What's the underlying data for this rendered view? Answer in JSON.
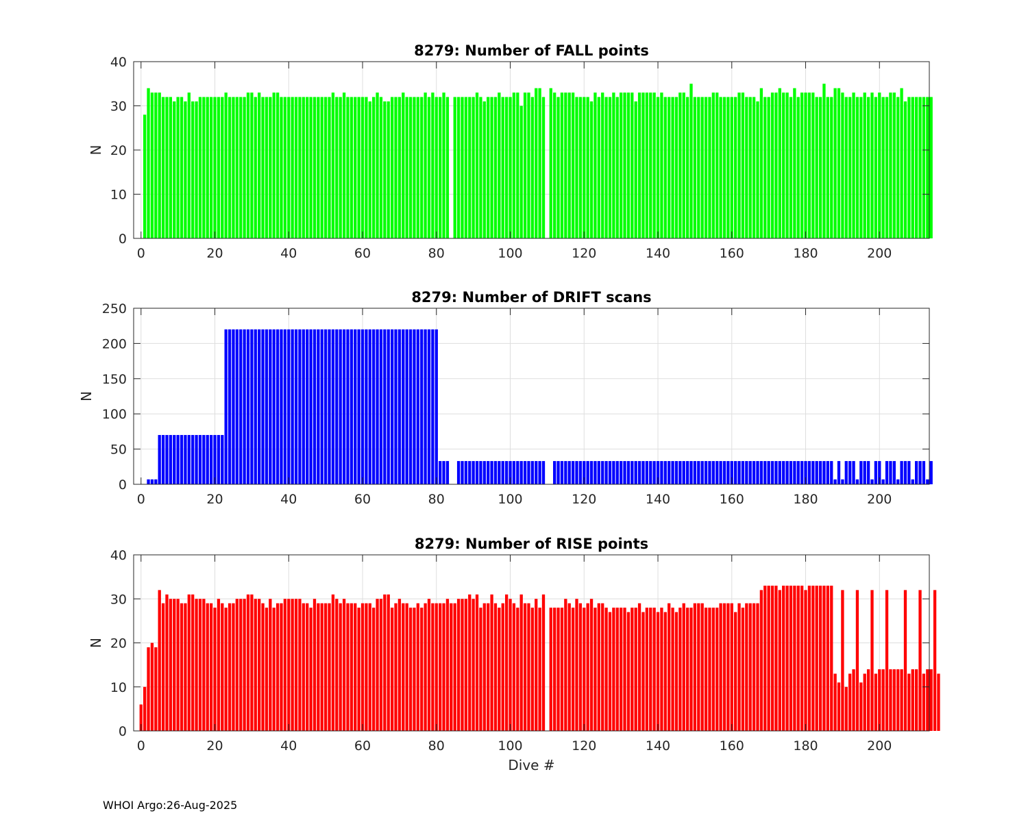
{
  "footer": "WHOI Argo:26-Aug-2025",
  "colors": {
    "fall": "#00ff00",
    "drift": "#0000ff",
    "rise": "#ff0000",
    "grid": "#dedede",
    "axis": "#262626"
  },
  "chart_data": [
    {
      "type": "bar",
      "title": "8279: Number of FALL points",
      "xlabel": "",
      "ylabel": "N",
      "xlim": [
        -2,
        213.5
      ],
      "ylim": [
        0,
        40
      ],
      "xticks": [
        0,
        20,
        40,
        60,
        80,
        100,
        120,
        140,
        160,
        180,
        200
      ],
      "yticks": [
        0,
        10,
        20,
        30,
        40
      ],
      "x_start": 0,
      "missing": [
        84,
        110
      ],
      "values": [
        0,
        28,
        34,
        33,
        33,
        33,
        32,
        32,
        32,
        31,
        32,
        32,
        31,
        33,
        31,
        31,
        32,
        32,
        32,
        32,
        32,
        32,
        32,
        33,
        32,
        32,
        32,
        32,
        32,
        33,
        33,
        32,
        33,
        32,
        32,
        32,
        33,
        33,
        32,
        32,
        32,
        32,
        32,
        32,
        32,
        32,
        32,
        32,
        32,
        32,
        32,
        32,
        33,
        32,
        32,
        33,
        32,
        32,
        32,
        32,
        32,
        32,
        31,
        32,
        33,
        32,
        31,
        31,
        32,
        32,
        32,
        33,
        32,
        32,
        32,
        32,
        32,
        33,
        32,
        33,
        32,
        32,
        33,
        32,
        0,
        32,
        32,
        32,
        32,
        32,
        32,
        33,
        32,
        31,
        32,
        32,
        32,
        33,
        32,
        32,
        32,
        33,
        33,
        30,
        33,
        33,
        32,
        34,
        34,
        32,
        0,
        34,
        33,
        32,
        33,
        33,
        33,
        33,
        32,
        32,
        32,
        32,
        31,
        33,
        32,
        33,
        32,
        32,
        33,
        32,
        33,
        33,
        33,
        33,
        31,
        33,
        33,
        33,
        33,
        33,
        32,
        33,
        32,
        32,
        32,
        32,
        33,
        33,
        32,
        35,
        32,
        32,
        32,
        32,
        32,
        33,
        33,
        32,
        32,
        32,
        32,
        32,
        33,
        33,
        32,
        32,
        32,
        31,
        34,
        32,
        32,
        33,
        33,
        34,
        33,
        33,
        32,
        34,
        32,
        33,
        33,
        33,
        33,
        32,
        32,
        35,
        32,
        32,
        34,
        34,
        33,
        32,
        32,
        33,
        32,
        32,
        33,
        32,
        33,
        32,
        33,
        32,
        32,
        33,
        33,
        32,
        34,
        31,
        32,
        32,
        32,
        32,
        32,
        32,
        32
      ]
    },
    {
      "type": "bar",
      "title": "8279: Number of DRIFT scans",
      "xlabel": "",
      "ylabel": "N",
      "xlim": [
        -2,
        213.5
      ],
      "ylim": [
        0,
        250
      ],
      "xticks": [
        0,
        20,
        40,
        60,
        80,
        100,
        120,
        140,
        160,
        180,
        200
      ],
      "yticks": [
        0,
        50,
        100,
        150,
        200,
        250
      ],
      "x_start": 0,
      "missing": [
        84,
        110
      ],
      "values": [
        0,
        0,
        7,
        7,
        7,
        70,
        70,
        70,
        70,
        70,
        70,
        70,
        70,
        70,
        70,
        70,
        70,
        70,
        70,
        70,
        70,
        70,
        70,
        220,
        220,
        220,
        220,
        220,
        220,
        220,
        220,
        220,
        220,
        220,
        220,
        220,
        220,
        220,
        220,
        220,
        220,
        220,
        220,
        220,
        220,
        220,
        220,
        220,
        220,
        220,
        220,
        220,
        220,
        220,
        220,
        220,
        220,
        220,
        220,
        220,
        220,
        220,
        220,
        220,
        220,
        220,
        220,
        220,
        220,
        220,
        220,
        220,
        220,
        220,
        220,
        220,
        220,
        220,
        220,
        220,
        220,
        33,
        33,
        33,
        0,
        0,
        33,
        33,
        33,
        33,
        33,
        33,
        33,
        33,
        33,
        33,
        33,
        33,
        33,
        33,
        33,
        33,
        33,
        33,
        33,
        33,
        33,
        33,
        33,
        33,
        0,
        0,
        33,
        33,
        33,
        33,
        33,
        33,
        33,
        33,
        33,
        33,
        33,
        33,
        33,
        33,
        33,
        33,
        33,
        33,
        33,
        33,
        33,
        33,
        33,
        33,
        33,
        33,
        33,
        33,
        33,
        33,
        33,
        33,
        33,
        33,
        33,
        33,
        33,
        33,
        33,
        33,
        33,
        33,
        33,
        33,
        33,
        33,
        33,
        33,
        33,
        33,
        33,
        33,
        33,
        33,
        33,
        33,
        33,
        33,
        33,
        33,
        33,
        33,
        33,
        33,
        33,
        33,
        33,
        33,
        33,
        33,
        33,
        33,
        33,
        33,
        33,
        33,
        7,
        33,
        7,
        33,
        33,
        33,
        7,
        33,
        33,
        33,
        7,
        33,
        33,
        7,
        33,
        33,
        33,
        7,
        33,
        33,
        33,
        7,
        33,
        33,
        33,
        7,
        33
      ]
    },
    {
      "type": "bar",
      "title": "8279: Number of RISE points",
      "xlabel": "Dive #",
      "ylabel": "N",
      "xlim": [
        -2,
        213.5
      ],
      "ylim": [
        0,
        40
      ],
      "xticks": [
        0,
        20,
        40,
        60,
        80,
        100,
        120,
        140,
        160,
        180,
        200
      ],
      "yticks": [
        0,
        10,
        20,
        30,
        40
      ],
      "x_start": 0,
      "missing": [
        110
      ],
      "values": [
        6,
        10,
        19,
        20,
        19,
        32,
        29,
        31,
        30,
        30,
        30,
        29,
        29,
        31,
        31,
        30,
        30,
        30,
        29,
        29,
        28,
        30,
        29,
        28,
        29,
        29,
        30,
        30,
        30,
        31,
        31,
        30,
        30,
        29,
        28,
        30,
        28,
        29,
        29,
        30,
        30,
        30,
        30,
        30,
        29,
        29,
        28,
        30,
        29,
        29,
        29,
        29,
        31,
        30,
        29,
        30,
        29,
        29,
        29,
        28,
        29,
        29,
        29,
        28,
        30,
        30,
        31,
        31,
        28,
        29,
        30,
        29,
        29,
        28,
        28,
        29,
        28,
        29,
        30,
        29,
        29,
        29,
        29,
        30,
        29,
        29,
        30,
        30,
        30,
        31,
        30,
        31,
        28,
        29,
        29,
        31,
        29,
        28,
        29,
        31,
        30,
        29,
        28,
        31,
        29,
        29,
        28,
        30,
        28,
        31,
        0,
        28,
        28,
        28,
        28,
        30,
        29,
        28,
        30,
        29,
        28,
        29,
        30,
        28,
        29,
        29,
        28,
        27,
        28,
        28,
        28,
        28,
        27,
        28,
        28,
        29,
        27,
        28,
        28,
        28,
        27,
        28,
        27,
        29,
        28,
        27,
        28,
        29,
        28,
        28,
        29,
        29,
        29,
        28,
        28,
        28,
        28,
        29,
        29,
        29,
        29,
        27,
        29,
        28,
        29,
        29,
        29,
        29,
        32,
        33,
        33,
        33,
        33,
        32,
        33,
        33,
        33,
        33,
        33,
        33,
        32,
        33,
        33,
        33,
        33,
        33,
        33,
        33,
        13,
        11,
        32,
        10,
        13,
        14,
        32,
        11,
        13,
        14,
        32,
        13,
        14,
        14,
        32,
        14,
        14,
        14,
        14,
        32,
        13,
        14,
        14,
        32,
        13,
        14,
        14,
        32,
        13
      ]
    }
  ]
}
